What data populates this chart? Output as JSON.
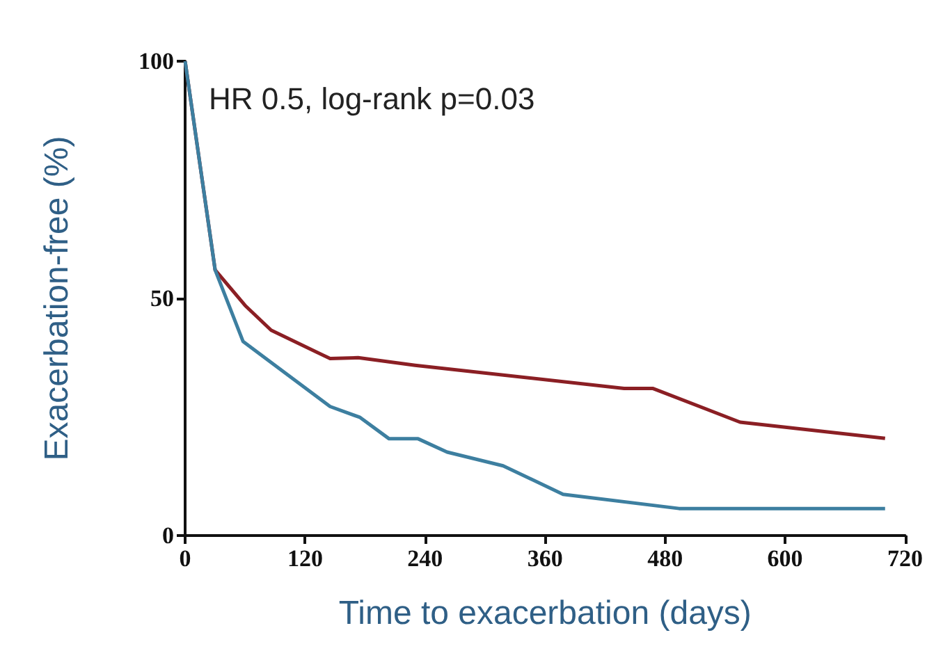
{
  "chart_data": {
    "type": "line",
    "xlabel": "Time to exacerbation (days)",
    "ylabel": "Exacerbation-free (%)",
    "annotations": [
      "HR 0.5, log-rank p=0.03"
    ],
    "series": [
      {
        "color": "#8b1f24",
        "x": [
          0,
          30,
          60,
          86,
          145,
          173,
          230,
          439,
          468,
          555,
          700
        ],
        "values": [
          100,
          56,
          48.5,
          43.3,
          37.3,
          37.5,
          35.9,
          31,
          31,
          23.9,
          20.5
        ]
      },
      {
        "color": "#3d7fa0",
        "x": [
          0,
          30,
          58,
          145,
          175,
          204,
          233,
          262,
          318,
          378,
          494,
          700
        ],
        "values": [
          100,
          56,
          40.9,
          27.2,
          24.9,
          20.4,
          20.4,
          17.6,
          14.7,
          8.7,
          5.7,
          5.7
        ]
      }
    ],
    "xlim": [
      0,
      720
    ],
    "xticks": [
      0,
      120,
      240,
      360,
      480,
      600,
      720
    ],
    "ylim": [
      0,
      100
    ],
    "yticks": [
      0,
      50,
      100
    ],
    "marker": "none",
    "line_style": "solid"
  }
}
